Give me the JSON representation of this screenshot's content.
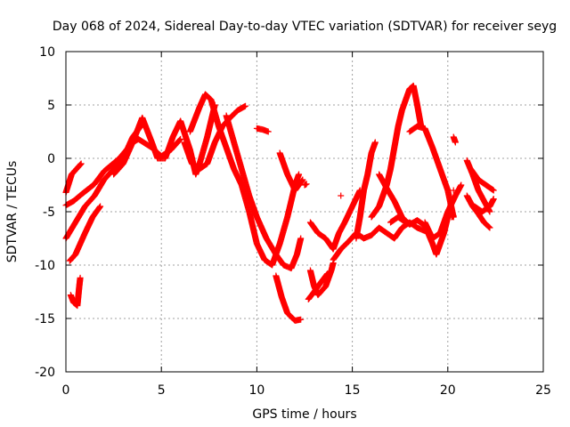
{
  "chart_data": {
    "type": "scatter",
    "title": "Day 068 of 2024, Sidereal Day-to-day VTEC variation (SDTVAR) for receiver seyg",
    "xlabel": "GPS time / hours",
    "ylabel": "SDTVAR / TECUs",
    "xlim": [
      0,
      25
    ],
    "ylim": [
      -20,
      10
    ],
    "xticks": [
      0,
      5,
      10,
      15,
      20,
      25
    ],
    "yticks": [
      -20,
      -15,
      -10,
      -5,
      0,
      5,
      10
    ],
    "grid": true,
    "marker": "+",
    "color": "#ff0000",
    "series": [
      {
        "name": "tracks",
        "segments": [
          [
            [
              0.0,
              -3.2
            ],
            [
              0.3,
              -1.5
            ],
            [
              0.8,
              -0.5
            ]
          ],
          [
            [
              0.0,
              -7.5
            ],
            [
              0.5,
              -6.0
            ],
            [
              1.0,
              -4.5
            ],
            [
              1.5,
              -3.5
            ],
            [
              2.0,
              -2.0
            ],
            [
              2.5,
              -1.0
            ],
            [
              3.0,
              0.0
            ],
            [
              3.5,
              2.0
            ],
            [
              4.0,
              3.2
            ]
          ],
          [
            [
              0.0,
              -4.4
            ],
            [
              0.4,
              -4.0
            ],
            [
              0.8,
              -3.4
            ],
            [
              1.5,
              -2.4
            ],
            [
              2.0,
              -1.2
            ],
            [
              2.8,
              0.0
            ],
            [
              3.5,
              1.5
            ],
            [
              3.8,
              1.8
            ],
            [
              4.5,
              1.0
            ],
            [
              5.0,
              0.2
            ],
            [
              5.5,
              0.8
            ],
            [
              6.0,
              1.8
            ]
          ],
          [
            [
              0.2,
              -9.6
            ],
            [
              0.5,
              -9.0
            ],
            [
              1.0,
              -7.0
            ],
            [
              1.4,
              -5.5
            ],
            [
              1.8,
              -4.5
            ]
          ],
          [
            [
              0.25,
              -12.8
            ],
            [
              0.4,
              -13.5
            ],
            [
              0.6,
              -13.8
            ],
            [
              0.7,
              -12.0
            ],
            [
              0.75,
              -11.2
            ]
          ],
          [
            [
              2.5,
              -1.5
            ],
            [
              3.0,
              -0.5
            ],
            [
              3.5,
              1.5
            ],
            [
              4.0,
              3.8
            ],
            [
              4.5,
              1.5
            ],
            [
              4.8,
              0.0
            ],
            [
              5.2,
              0.0
            ],
            [
              5.6,
              2.0
            ],
            [
              6.0,
              3.5
            ],
            [
              6.5,
              0.8
            ],
            [
              6.8,
              -1.5
            ],
            [
              7.0,
              -0.5
            ],
            [
              7.4,
              2.0
            ],
            [
              7.8,
              5.0
            ]
          ],
          [
            [
              6.5,
              2.5
            ],
            [
              7.0,
              4.8
            ],
            [
              7.3,
              6.0
            ],
            [
              7.6,
              5.5
            ],
            [
              8.0,
              3.0
            ],
            [
              8.4,
              1.0
            ],
            [
              8.8,
              -1.0
            ],
            [
              9.2,
              -2.5
            ],
            [
              9.6,
              -5.0
            ],
            [
              10.0,
              -8.0
            ],
            [
              10.4,
              -9.5
            ],
            [
              10.8,
              -10.0
            ],
            [
              11.2,
              -8.0
            ],
            [
              11.6,
              -5.5
            ],
            [
              12.0,
              -2.5
            ],
            [
              12.2,
              -1.5
            ]
          ],
          [
            [
              6.2,
              1.5
            ],
            [
              6.6,
              -0.5
            ],
            [
              7.0,
              -1.0
            ],
            [
              7.4,
              -0.5
            ],
            [
              7.8,
              1.5
            ],
            [
              8.2,
              3.0
            ],
            [
              8.6,
              3.8
            ],
            [
              9.0,
              4.5
            ],
            [
              9.4,
              4.9
            ]
          ],
          [
            [
              8.4,
              4.0
            ],
            [
              8.8,
              1.5
            ],
            [
              9.2,
              -1.0
            ],
            [
              9.6,
              -3.5
            ],
            [
              10.0,
              -5.5
            ],
            [
              10.5,
              -7.5
            ],
            [
              11.0,
              -9.0
            ],
            [
              11.4,
              -10.0
            ],
            [
              11.8,
              -10.3
            ],
            [
              12.1,
              -9.0
            ],
            [
              12.3,
              -7.5
            ]
          ],
          [
            [
              10.0,
              2.8
            ],
            [
              10.3,
              2.7
            ],
            [
              10.6,
              2.5
            ]
          ],
          [
            [
              11.2,
              0.5
            ],
            [
              11.6,
              -1.5
            ],
            [
              12.0,
              -3.0
            ],
            [
              12.4,
              -2.0
            ]
          ],
          [
            [
              11.0,
              -11.0
            ],
            [
              11.3,
              -13.0
            ],
            [
              11.6,
              -14.5
            ],
            [
              12.0,
              -15.2
            ],
            [
              12.3,
              -15.1
            ]
          ],
          [
            [
              12.5,
              -2.5
            ],
            [
              12.6,
              -2.4
            ]
          ],
          [
            [
              12.8,
              -6.0
            ],
            [
              13.2,
              -7.0
            ],
            [
              13.6,
              -7.5
            ],
            [
              14.0,
              -8.5
            ],
            [
              14.3,
              -7.0
            ],
            [
              14.6,
              -6.0
            ],
            [
              15.0,
              -4.5
            ],
            [
              15.4,
              -3.0
            ]
          ],
          [
            [
              12.8,
              -10.5
            ],
            [
              13.0,
              -12.0
            ],
            [
              13.2,
              -12.8
            ],
            [
              13.6,
              -12.0
            ],
            [
              13.9,
              -10.5
            ],
            [
              14.0,
              -9.8
            ]
          ],
          [
            [
              12.7,
              -13.2
            ],
            [
              13.0,
              -12.5
            ],
            [
              13.4,
              -11.5
            ],
            [
              13.7,
              -10.8
            ]
          ],
          [
            [
              14.0,
              -9.5
            ],
            [
              14.4,
              -8.5
            ],
            [
              14.8,
              -7.8
            ],
            [
              15.2,
              -7.0
            ],
            [
              15.6,
              -7.5
            ],
            [
              16.0,
              -7.2
            ],
            [
              16.4,
              -6.5
            ],
            [
              16.8,
              -7.0
            ],
            [
              17.2,
              -7.5
            ],
            [
              17.6,
              -6.5
            ],
            [
              18.0,
              -6.0
            ],
            [
              18.4,
              -6.5
            ],
            [
              18.8,
              -6.8
            ]
          ],
          [
            [
              14.4,
              -3.5
            ]
          ],
          [
            [
              15.2,
              -7.5
            ],
            [
              15.4,
              -5.5
            ],
            [
              15.6,
              -3.0
            ],
            [
              15.8,
              -1.5
            ],
            [
              16.0,
              0.5
            ],
            [
              16.2,
              1.5
            ]
          ],
          [
            [
              16.0,
              -5.5
            ],
            [
              16.4,
              -4.5
            ],
            [
              16.8,
              -2.5
            ],
            [
              17.0,
              -1.0
            ],
            [
              17.2,
              1.0
            ],
            [
              17.4,
              3.0
            ],
            [
              17.6,
              4.5
            ],
            [
              17.8,
              5.5
            ],
            [
              18.0,
              6.5
            ],
            [
              18.2,
              6.8
            ],
            [
              18.4,
              5.0
            ],
            [
              18.6,
              3.0
            ]
          ],
          [
            [
              16.4,
              -1.5
            ],
            [
              16.8,
              -2.8
            ],
            [
              17.2,
              -4.0
            ],
            [
              17.6,
              -5.5
            ],
            [
              18.0,
              -6.2
            ],
            [
              18.4,
              -5.8
            ],
            [
              18.8,
              -6.3
            ],
            [
              19.2,
              -8.0
            ],
            [
              19.4,
              -9.0
            ],
            [
              19.8,
              -7.0
            ],
            [
              20.2,
              -4.0
            ]
          ],
          [
            [
              17.0,
              -6.0
            ],
            [
              17.4,
              -5.5
            ],
            [
              17.8,
              -6.0
            ]
          ],
          [
            [
              18.0,
              2.5
            ],
            [
              18.4,
              3.0
            ],
            [
              18.8,
              2.8
            ],
            [
              19.2,
              1.0
            ],
            [
              19.6,
              -1.0
            ],
            [
              20.0,
              -3.0
            ],
            [
              20.3,
              -5.5
            ]
          ],
          [
            [
              18.8,
              -6.0
            ],
            [
              19.2,
              -7.5
            ],
            [
              19.6,
              -7.0
            ],
            [
              20.0,
              -5.0
            ],
            [
              20.4,
              -3.5
            ],
            [
              20.7,
              -2.5
            ]
          ],
          [
            [
              20.2,
              -5.5
            ],
            [
              20.3,
              -5.4
            ]
          ],
          [
            [
              20.3,
              2.0
            ],
            [
              20.4,
              1.5
            ]
          ],
          [
            [
              20.3,
              -3.0
            ]
          ],
          [
            [
              21.0,
              -0.2
            ],
            [
              21.3,
              -1.5
            ],
            [
              21.6,
              -3.0
            ],
            [
              21.9,
              -4.0
            ],
            [
              22.2,
              -5.0
            ]
          ],
          [
            [
              21.0,
              -3.5
            ],
            [
              21.3,
              -4.5
            ],
            [
              21.6,
              -5.2
            ],
            [
              21.9,
              -6.0
            ],
            [
              22.2,
              -6.5
            ]
          ],
          [
            [
              21.2,
              -1.0
            ],
            [
              21.6,
              -2.0
            ],
            [
              22.0,
              -2.5
            ],
            [
              22.4,
              -3.0
            ]
          ],
          [
            [
              21.4,
              -4.5
            ],
            [
              21.8,
              -5.0
            ],
            [
              22.2,
              -4.5
            ],
            [
              22.4,
              -3.8
            ]
          ]
        ]
      }
    ]
  }
}
